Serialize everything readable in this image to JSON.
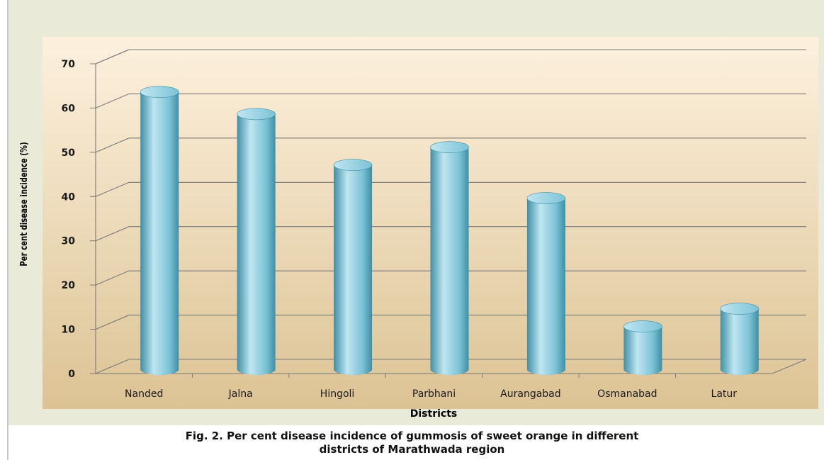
{
  "chart_data": {
    "type": "bar",
    "title": "",
    "xlabel": "Districts",
    "ylabel": "Per cent disease incidence (%)",
    "categories": [
      "Nanded",
      "Jalna",
      "Hingoli",
      "Parbhani",
      "Aurangabad",
      "Osmanabad",
      "Latur"
    ],
    "values": [
      63,
      58,
      46.5,
      50.5,
      39,
      10,
      14
    ],
    "yticks": [
      "0",
      "10",
      "20",
      "30",
      "40",
      "50",
      "60",
      "70"
    ],
    "ylim": [
      0,
      70
    ],
    "grid": true,
    "legend": "none",
    "bar_color": "#7cc3d6",
    "style": "3d-cylinder"
  },
  "caption": {
    "line1": "Fig. 2. Per cent disease incidence of gummosis of sweet orange in different",
    "line2": "districts of Marathwada region"
  },
  "colors": {
    "outer_background": "#e9ead8",
    "plot_gradient_top": "#fdf1de",
    "plot_gradient_bottom": "#dcc394",
    "grid": "#7a7a7a",
    "bar_light": "#bfe6f1",
    "bar_mid": "#7cc3d6",
    "bar_dark": "#3f8fa6",
    "text": "#1a1a1a"
  }
}
